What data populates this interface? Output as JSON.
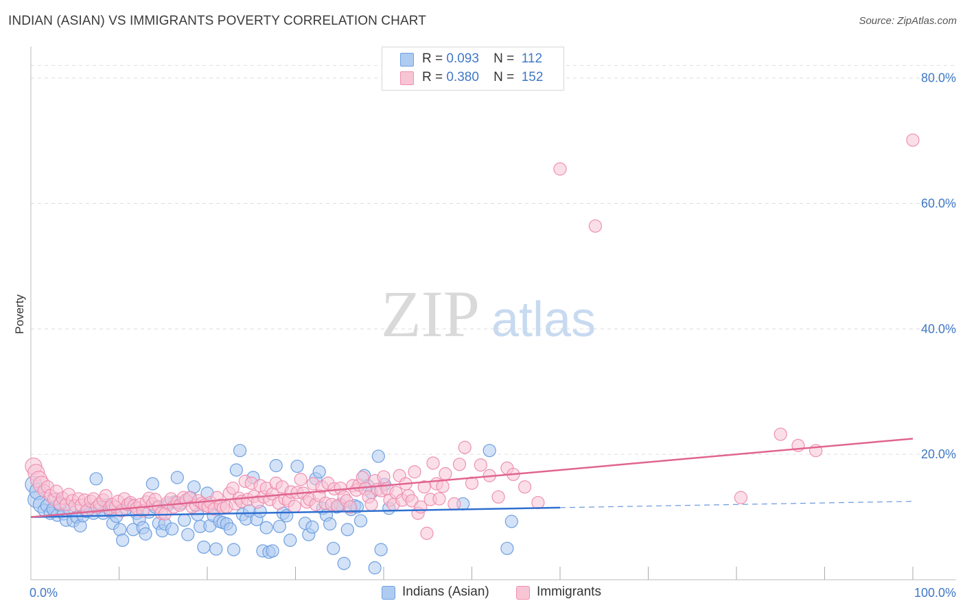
{
  "header": {
    "title": "INDIAN (ASIAN) VS IMMIGRANTS POVERTY CORRELATION CHART",
    "source": "Source: ZipAtlas.com"
  },
  "legend": {
    "rows": [
      {
        "r_label": "R =",
        "r_value": "0.093",
        "n_label": "N =",
        "n_value": "112"
      },
      {
        "r_label": "R =",
        "r_value": "0.380",
        "n_label": "N =",
        "n_value": "152"
      }
    ],
    "bottom": [
      "Indians (Asian)",
      "Immigrants"
    ]
  },
  "colors": {
    "blue_fill": "#aecbf0",
    "blue_stroke": "#6e9fe0",
    "blue_line": "#2e6fd0",
    "pink_fill": "#f8c5d5",
    "pink_stroke": "#ee8fb0",
    "pink_line": "#e06490",
    "tick_text": "#3f78c6",
    "grid": "#dddddd"
  },
  "watermark": {
    "zip": "ZIP",
    "atlas": "atlas"
  },
  "chart_data": {
    "type": "scatter",
    "title": "INDIAN (ASIAN) VS IMMIGRANTS POVERTY CORRELATION CHART",
    "xlabel": "",
    "ylabel": "Poverty",
    "xlim": [
      0,
      100
    ],
    "ylim": [
      0,
      85
    ],
    "x_tick_labels": [
      "0.0%",
      "100.0%"
    ],
    "y_ticks": [
      20,
      40,
      60,
      80
    ],
    "y_tick_labels": [
      "20.0%",
      "40.0%",
      "60.0%",
      "80.0%"
    ],
    "grid": true,
    "legend_position": "top-center",
    "series": [
      {
        "name": "Indians (Asian)",
        "R": 0.093,
        "N": 112,
        "trend": {
          "solid": [
            [
              0,
              10.0
            ],
            [
              60,
              11.5
            ]
          ],
          "dashed": [
            [
              60,
              11.5
            ],
            [
              100,
              12.5
            ]
          ]
        },
        "points": [
          [
            0.3,
            15.2
          ],
          [
            0.6,
            12.8
          ],
          [
            0.8,
            14.1
          ],
          [
            1.2,
            12.0
          ],
          [
            1.5,
            11.1
          ],
          [
            1.8,
            11.8
          ],
          [
            2.2,
            10.6
          ],
          [
            2.5,
            11.3
          ],
          [
            2.8,
            12.9
          ],
          [
            3.0,
            10.3
          ],
          [
            3.3,
            11.9
          ],
          [
            3.7,
            10.5
          ],
          [
            4.0,
            9.5
          ],
          [
            4.4,
            11.2
          ],
          [
            4.8,
            9.4
          ],
          [
            5.2,
            10.0
          ],
          [
            5.6,
            8.6
          ],
          [
            5.9,
            10.2
          ],
          [
            6.3,
            10.9
          ],
          [
            6.7,
            11.4
          ],
          [
            7.1,
            10.6
          ],
          [
            7.4,
            16.1
          ],
          [
            7.8,
            11.6
          ],
          [
            8.2,
            10.6
          ],
          [
            8.6,
            11.9
          ],
          [
            9.0,
            10.9
          ],
          [
            9.3,
            9.0
          ],
          [
            9.7,
            10.1
          ],
          [
            10.1,
            8.0
          ],
          [
            10.4,
            6.3
          ],
          [
            10.8,
            11.4
          ],
          [
            11.2,
            12.0
          ],
          [
            11.6,
            8.0
          ],
          [
            12.0,
            10.6
          ],
          [
            12.3,
            9.6
          ],
          [
            12.7,
            8.3
          ],
          [
            13.0,
            7.3
          ],
          [
            13.4,
            10.8
          ],
          [
            13.8,
            15.3
          ],
          [
            14.1,
            11.6
          ],
          [
            14.5,
            9.0
          ],
          [
            14.9,
            7.8
          ],
          [
            15.2,
            8.9
          ],
          [
            15.6,
            12.0
          ],
          [
            16.0,
            8.1
          ],
          [
            16.3,
            12.4
          ],
          [
            16.6,
            16.3
          ],
          [
            17.0,
            12.2
          ],
          [
            17.4,
            9.5
          ],
          [
            17.8,
            7.2
          ],
          [
            18.1,
            13.1
          ],
          [
            18.5,
            14.8
          ],
          [
            18.9,
            10.4
          ],
          [
            19.2,
            8.5
          ],
          [
            19.6,
            5.2
          ],
          [
            20.0,
            13.8
          ],
          [
            20.3,
            8.6
          ],
          [
            20.7,
            10.2
          ],
          [
            21.0,
            4.9
          ],
          [
            21.4,
            9.3
          ],
          [
            21.8,
            9.1
          ],
          [
            22.2,
            8.9
          ],
          [
            22.6,
            8.1
          ],
          [
            23.0,
            4.8
          ],
          [
            23.3,
            17.5
          ],
          [
            23.7,
            20.6
          ],
          [
            24.0,
            10.4
          ],
          [
            24.4,
            9.7
          ],
          [
            24.8,
            11.0
          ],
          [
            25.2,
            16.3
          ],
          [
            25.6,
            9.6
          ],
          [
            26.0,
            10.9
          ],
          [
            26.3,
            4.6
          ],
          [
            26.7,
            8.3
          ],
          [
            27.0,
            4.4
          ],
          [
            27.4,
            4.6
          ],
          [
            27.8,
            18.2
          ],
          [
            28.2,
            8.5
          ],
          [
            28.6,
            10.6
          ],
          [
            29.0,
            10.2
          ],
          [
            29.4,
            6.3
          ],
          [
            30.2,
            18.1
          ],
          [
            31.1,
            9.0
          ],
          [
            31.5,
            7.2
          ],
          [
            31.9,
            8.4
          ],
          [
            32.3,
            16.1
          ],
          [
            32.7,
            17.2
          ],
          [
            33.1,
            11.4
          ],
          [
            33.5,
            10.3
          ],
          [
            33.9,
            8.9
          ],
          [
            34.3,
            5.0
          ],
          [
            34.7,
            11.6
          ],
          [
            35.1,
            12.0
          ],
          [
            35.5,
            2.6
          ],
          [
            35.9,
            8.0
          ],
          [
            36.3,
            11.2
          ],
          [
            36.7,
            11.8
          ],
          [
            37.0,
            11.6
          ],
          [
            37.4,
            9.4
          ],
          [
            37.8,
            16.6
          ],
          [
            38.2,
            15.0
          ],
          [
            38.6,
            13.9
          ],
          [
            39.0,
            1.9
          ],
          [
            39.4,
            19.7
          ],
          [
            39.7,
            4.8
          ],
          [
            40.1,
            15.2
          ],
          [
            40.6,
            11.4
          ],
          [
            49.0,
            12.1
          ],
          [
            52.0,
            20.6
          ],
          [
            54.0,
            5.0
          ],
          [
            54.5,
            9.3
          ]
        ]
      },
      {
        "name": "Immigrants",
        "R": 0.38,
        "N": 152,
        "trend": {
          "solid": [
            [
              0,
              10.0
            ],
            [
              100,
              22.5
            ]
          ]
        },
        "points": [
          [
            0.3,
            18.1
          ],
          [
            0.6,
            17.1
          ],
          [
            0.9,
            16.0
          ],
          [
            1.2,
            15.2
          ],
          [
            1.5,
            14.2
          ],
          [
            1.9,
            14.8
          ],
          [
            2.2,
            13.4
          ],
          [
            2.6,
            12.8
          ],
          [
            2.9,
            14.1
          ],
          [
            3.3,
            12.1
          ],
          [
            3.6,
            13.0
          ],
          [
            4.0,
            12.0
          ],
          [
            4.3,
            13.6
          ],
          [
            4.7,
            12.6
          ],
          [
            5.0,
            11.8
          ],
          [
            5.4,
            12.9
          ],
          [
            5.7,
            11.9
          ],
          [
            6.1,
            12.7
          ],
          [
            6.4,
            11.1
          ],
          [
            6.8,
            12.5
          ],
          [
            7.1,
            12.9
          ],
          [
            7.5,
            11.6
          ],
          [
            7.8,
            12.1
          ],
          [
            8.2,
            12.7
          ],
          [
            8.5,
            13.4
          ],
          [
            8.9,
            11.4
          ],
          [
            9.2,
            12.0
          ],
          [
            9.6,
            11.6
          ],
          [
            9.9,
            12.5
          ],
          [
            10.3,
            11.0
          ],
          [
            10.6,
            12.9
          ],
          [
            11.0,
            12.0
          ],
          [
            11.3,
            12.3
          ],
          [
            11.7,
            11.8
          ],
          [
            12.0,
            11.4
          ],
          [
            12.4,
            12.0
          ],
          [
            12.7,
            11.0
          ],
          [
            13.1,
            12.4
          ],
          [
            13.4,
            13.0
          ],
          [
            13.8,
            12.1
          ],
          [
            14.1,
            12.8
          ],
          [
            14.5,
            11.6
          ],
          [
            14.8,
            10.6
          ],
          [
            15.2,
            10.5
          ],
          [
            15.5,
            12.3
          ],
          [
            15.9,
            12.9
          ],
          [
            16.2,
            11.6
          ],
          [
            16.6,
            12.3
          ],
          [
            16.9,
            11.9
          ],
          [
            17.3,
            13.1
          ],
          [
            17.6,
            12.7
          ],
          [
            18.0,
            13.1
          ],
          [
            18.3,
            11.6
          ],
          [
            18.7,
            11.9
          ],
          [
            19.0,
            12.6
          ],
          [
            19.4,
            12.2
          ],
          [
            19.7,
            11.9
          ],
          [
            20.1,
            11.7
          ],
          [
            20.4,
            12.3
          ],
          [
            20.8,
            11.3
          ],
          [
            21.1,
            13.1
          ],
          [
            21.5,
            11.9
          ],
          [
            21.8,
            11.4
          ],
          [
            22.2,
            11.6
          ],
          [
            22.5,
            13.8
          ],
          [
            22.9,
            14.6
          ],
          [
            23.2,
            12.1
          ],
          [
            23.6,
            13.0
          ],
          [
            23.9,
            12.5
          ],
          [
            24.3,
            15.7
          ],
          [
            24.6,
            12.8
          ],
          [
            25.0,
            15.4
          ],
          [
            25.3,
            13.3
          ],
          [
            25.7,
            12.4
          ],
          [
            26.0,
            15.0
          ],
          [
            26.4,
            13.2
          ],
          [
            26.7,
            14.6
          ],
          [
            27.1,
            12.8
          ],
          [
            27.4,
            13.7
          ],
          [
            27.8,
            15.4
          ],
          [
            28.1,
            12.2
          ],
          [
            28.5,
            14.8
          ],
          [
            28.8,
            12.9
          ],
          [
            29.2,
            12.6
          ],
          [
            29.5,
            14.0
          ],
          [
            29.9,
            11.7
          ],
          [
            30.2,
            13.9
          ],
          [
            30.6,
            16.0
          ],
          [
            30.9,
            13.8
          ],
          [
            31.3,
            12.4
          ],
          [
            31.6,
            12.8
          ],
          [
            32.0,
            15.3
          ],
          [
            32.3,
            12.0
          ],
          [
            32.7,
            13.4
          ],
          [
            33.0,
            14.8
          ],
          [
            33.4,
            12.2
          ],
          [
            33.7,
            15.4
          ],
          [
            34.1,
            12.0
          ],
          [
            34.4,
            14.5
          ],
          [
            34.8,
            11.8
          ],
          [
            35.1,
            14.6
          ],
          [
            35.5,
            13.2
          ],
          [
            35.8,
            12.6
          ],
          [
            36.2,
            11.6
          ],
          [
            36.5,
            15.0
          ],
          [
            36.9,
            14.3
          ],
          [
            37.2,
            15.1
          ],
          [
            37.6,
            16.3
          ],
          [
            37.9,
            14.5
          ],
          [
            38.3,
            13.2
          ],
          [
            38.6,
            12.0
          ],
          [
            39.0,
            15.8
          ],
          [
            39.3,
            14.4
          ],
          [
            39.7,
            14.2
          ],
          [
            40.0,
            16.4
          ],
          [
            40.4,
            14.5
          ],
          [
            40.7,
            12.7
          ],
          [
            41.1,
            12.0
          ],
          [
            41.4,
            13.9
          ],
          [
            41.8,
            16.6
          ],
          [
            42.1,
            12.7
          ],
          [
            42.5,
            15.3
          ],
          [
            42.8,
            13.4
          ],
          [
            43.2,
            12.6
          ],
          [
            43.5,
            17.2
          ],
          [
            43.9,
            10.6
          ],
          [
            44.2,
            11.6
          ],
          [
            44.6,
            14.8
          ],
          [
            44.9,
            7.4
          ],
          [
            45.3,
            12.8
          ],
          [
            45.6,
            18.6
          ],
          [
            46.0,
            15.3
          ],
          [
            46.3,
            12.9
          ],
          [
            46.7,
            14.9
          ],
          [
            47.0,
            16.9
          ],
          [
            48.0,
            12.1
          ],
          [
            48.6,
            18.4
          ],
          [
            49.2,
            21.1
          ],
          [
            50.0,
            15.4
          ],
          [
            51.0,
            18.3
          ],
          [
            52.0,
            16.6
          ],
          [
            53.0,
            13.2
          ],
          [
            54.0,
            17.8
          ],
          [
            54.7,
            16.8
          ],
          [
            56.0,
            14.8
          ],
          [
            57.5,
            12.3
          ],
          [
            60.0,
            65.5
          ],
          [
            64.0,
            56.4
          ],
          [
            80.5,
            13.1
          ],
          [
            85.0,
            23.2
          ],
          [
            87.0,
            21.4
          ],
          [
            89.0,
            20.6
          ],
          [
            100.0,
            70.1
          ]
        ]
      }
    ]
  }
}
